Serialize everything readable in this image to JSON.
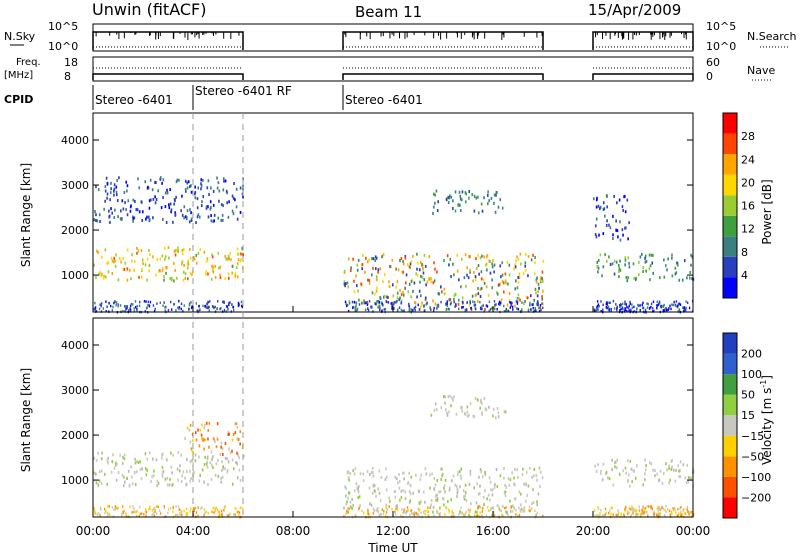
{
  "header": {
    "station": "Unwin (fitACF)",
    "beam": "Beam 11",
    "date": "15/Apr/2009"
  },
  "top_panels": {
    "nsky_label": "N.Sky",
    "nsky_ticks": [
      "10^5",
      "10^0"
    ],
    "nsky_right_ticks": [
      "10^5",
      "10^0"
    ],
    "nsearch_label": "N.Search",
    "freq_label": "Freq.",
    "freq_unit": "[MHz]",
    "freq_ticks": [
      "18",
      "8"
    ],
    "nave_ticks": [
      "60",
      "0"
    ],
    "nave_label": "Nave",
    "cpid_label": "CPID",
    "cpid_segments": [
      {
        "label": "Stereo -6401",
        "start": 0,
        "end": 4
      },
      {
        "label": "Stereo -6401 RF",
        "start": 4,
        "end": 6
      },
      {
        "label": "Stereo -6401",
        "start": 10,
        "end": 18
      }
    ]
  },
  "chart_data": [
    {
      "type": "heatmap",
      "title": "Power",
      "ylabel": "Slant Range [km]",
      "xlabel": "Time UT",
      "xlim": [
        0,
        24
      ],
      "ylim": [
        180,
        4600
      ],
      "yticks": [
        1000,
        2000,
        3000,
        4000
      ],
      "colorbar_label": "Power [dB]",
      "colorbar_ticks": [
        4,
        8,
        12,
        16,
        20,
        24,
        28
      ],
      "colorbar_range": [
        0,
        32
      ],
      "colors": [
        "#0000ff",
        "#2a3fbf",
        "#3a8080",
        "#3f9f3f",
        "#9acd32",
        "#ffd700",
        "#ffa500",
        "#ff4500",
        "#ff0000"
      ],
      "data_gaps_hours": [
        [
          6,
          10
        ],
        [
          18,
          20
        ]
      ],
      "scatter_regions": [
        {
          "t": [
            0,
            6
          ],
          "range": [
            900,
            1650
          ],
          "power": [
            14,
            26
          ]
        },
        {
          "t": [
            0,
            6
          ],
          "range": [
            2200,
            3200
          ],
          "power": [
            2,
            10
          ]
        },
        {
          "t": [
            10,
            18
          ],
          "range": [
            250,
            1500
          ],
          "power": [
            4,
            28
          ]
        },
        {
          "t": [
            13.5,
            16.5
          ],
          "range": [
            2400,
            2900
          ],
          "power": [
            6,
            14
          ]
        },
        {
          "t": [
            20,
            24
          ],
          "range": [
            900,
            1500
          ],
          "power": [
            6,
            16
          ]
        },
        {
          "t": [
            20,
            21.5
          ],
          "range": [
            1800,
            2800
          ],
          "power": [
            2,
            8
          ]
        }
      ]
    },
    {
      "type": "heatmap",
      "title": "Velocity",
      "ylabel": "Slant Range [km]",
      "xlabel": "Time UT",
      "xlim": [
        0,
        24
      ],
      "ylim": [
        180,
        4600
      ],
      "yticks": [
        1000,
        2000,
        3000,
        4000
      ],
      "colorbar_label": "Velocity [m s^-1]",
      "colorbar_ticks": [
        "200",
        "100",
        "50",
        "15",
        "-15",
        "-50",
        "-100",
        "-200"
      ],
      "colors": [
        "#2040c0",
        "#3060d0",
        "#40a040",
        "#90d040",
        "#c8c8c0",
        "#ffd000",
        "#ff9000",
        "#ff5000",
        "#ff0000"
      ],
      "data_gaps_hours": [
        [
          6,
          10
        ],
        [
          18,
          20
        ]
      ],
      "scatter_regions": [
        {
          "t": [
            0,
            6
          ],
          "range": [
            900,
            1650
          ],
          "velocity_class": "near-zero"
        },
        {
          "t": [
            3.5,
            6
          ],
          "range": [
            1600,
            2300
          ],
          "velocity_class": "negative"
        },
        {
          "t": [
            10,
            18
          ],
          "range": [
            300,
            1300
          ],
          "velocity_class": "near-zero"
        },
        {
          "t": [
            13.5,
            16.5
          ],
          "range": [
            2400,
            2900
          ],
          "velocity_class": "near-zero"
        },
        {
          "t": [
            20,
            24
          ],
          "range": [
            900,
            1500
          ],
          "velocity_class": "near-zero"
        }
      ]
    }
  ],
  "xaxis": {
    "ticks": [
      "00:00",
      "04:00",
      "08:00",
      "12:00",
      "16:00",
      "20:00",
      "00:00"
    ],
    "label": "Time UT"
  }
}
